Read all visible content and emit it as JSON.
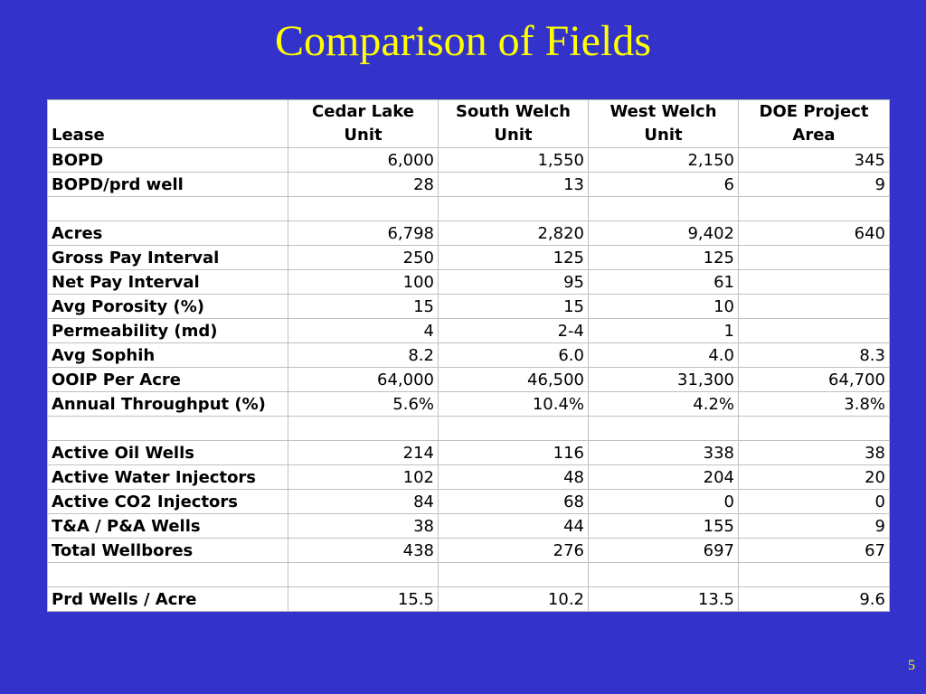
{
  "slide": {
    "title": "Comparison of Fields",
    "page_number": "5"
  },
  "table": {
    "columns": [
      "Lease",
      "Cedar Lake Unit",
      "South Welch Unit",
      "West Welch Unit",
      "DOE Project Area"
    ],
    "rows": [
      {
        "label": "BOPD",
        "values": [
          "6,000",
          "1,550",
          "2,150",
          "345"
        ]
      },
      {
        "label": "BOPD/prd well",
        "values": [
          "28",
          "13",
          "6",
          "9"
        ]
      },
      {
        "label": "",
        "values": [
          "",
          "",
          "",
          ""
        ]
      },
      {
        "label": "Acres",
        "values": [
          "6,798",
          "2,820",
          "9,402",
          "640"
        ]
      },
      {
        "label": "Gross Pay Interval",
        "values": [
          "250",
          "125",
          "125",
          ""
        ]
      },
      {
        "label": "Net Pay Interval",
        "values": [
          "100",
          "95",
          "61",
          ""
        ]
      },
      {
        "label": "Avg Porosity (%)",
        "values": [
          "15",
          "15",
          "10",
          ""
        ]
      },
      {
        "label": "Permeability (md)",
        "values": [
          "4",
          "2-4",
          "1",
          ""
        ]
      },
      {
        "label": "Avg Sophih",
        "values": [
          "8.2",
          "6.0",
          "4.0",
          "8.3"
        ]
      },
      {
        "label": "OOIP Per Acre",
        "values": [
          "64,000",
          "46,500",
          "31,300",
          "64,700"
        ]
      },
      {
        "label": "Annual Throughput (%)",
        "values": [
          "5.6%",
          "10.4%",
          "4.2%",
          "3.8%"
        ]
      },
      {
        "label": "",
        "values": [
          "",
          "",
          "",
          ""
        ]
      },
      {
        "label": "Active Oil Wells",
        "values": [
          "214",
          "116",
          "338",
          "38"
        ]
      },
      {
        "label": "Active Water Injectors",
        "values": [
          "102",
          "48",
          "204",
          "20"
        ]
      },
      {
        "label": "Active CO2 Injectors",
        "values": [
          "84",
          "68",
          "0",
          "0"
        ]
      },
      {
        "label": "T&A / P&A Wells",
        "values": [
          "38",
          "44",
          "155",
          "9"
        ]
      },
      {
        "label": "Total Wellbores",
        "values": [
          "438",
          "276",
          "697",
          "67"
        ]
      },
      {
        "label": "",
        "values": [
          "",
          "",
          "",
          ""
        ]
      },
      {
        "label": "Prd Wells / Acre",
        "values": [
          "15.5",
          "10.2",
          "13.5",
          "9.6"
        ]
      }
    ]
  },
  "colors": {
    "background": "#3333cc",
    "title": "#ffff00",
    "table_bg": "#ffffff",
    "grid": "#c0c0c0"
  }
}
